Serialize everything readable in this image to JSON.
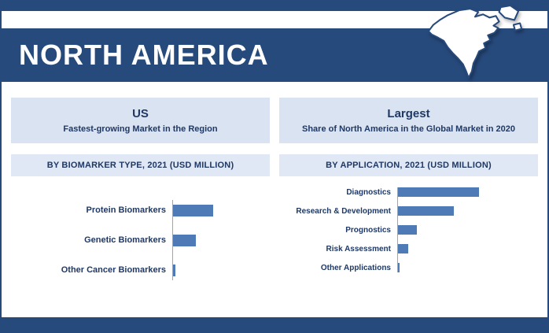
{
  "colors": {
    "navy_band": "#274a7d",
    "navy_text": "#1f3864",
    "panel_bg": "#d9e3f1",
    "section_bg": "#dfe8f4",
    "bar_fill": "#4e7ab5",
    "axis_line": "#9aa6b8"
  },
  "header": {
    "title": "NORTH AMERICA",
    "map_icon": "north-america-map"
  },
  "panels": [
    {
      "highlight": {
        "title": "US",
        "subtitle": "Fastest-growing Market in the Region"
      },
      "section_title": "BY BIOMARKER TYPE, 2021 (USD MILLION)"
    },
    {
      "highlight": {
        "title": "Largest",
        "subtitle": "Share of North America in the Global Market in 2020"
      },
      "section_title": "BY APPLICATION, 2021 (USD MILLION)"
    }
  ],
  "chart_data": [
    {
      "type": "bar",
      "orientation": "horizontal",
      "title": "BY BIOMARKER TYPE, 2021 (USD MILLION)",
      "units": "USD MILLION",
      "categories": [
        "Protein Biomarkers",
        "Genetic Biomarkers",
        "Other Cancer Biomarkers"
      ],
      "values": [
        52,
        30,
        4
      ],
      "xlim": [
        0,
        120
      ],
      "grid": false,
      "legend": false,
      "value_labels_shown": false
    },
    {
      "type": "bar",
      "orientation": "horizontal",
      "title": "BY APPLICATION, 2021 (USD MILLION)",
      "units": "USD MILLION",
      "categories": [
        "Diagnostics",
        "Research & Development",
        "Prognostics",
        "Risk Assessment",
        "Other Applications"
      ],
      "values": [
        104,
        72,
        25,
        14,
        3
      ],
      "xlim": [
        0,
        120
      ],
      "grid": false,
      "legend": false,
      "value_labels_shown": false
    }
  ]
}
